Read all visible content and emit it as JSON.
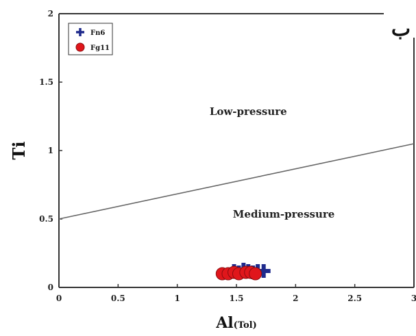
{
  "chart_data": {
    "type": "scatter",
    "xlabel_main": "Al",
    "xlabel_sub": "(Tol)",
    "ylabel": "Ti",
    "xlim": [
      0,
      3
    ],
    "ylim": [
      0,
      2
    ],
    "x_ticks": [
      "0",
      "0.5",
      "1",
      "1.5",
      "2",
      "2.5",
      "3"
    ],
    "y_ticks": [
      "0",
      "0.5",
      "1",
      "1.5",
      "2"
    ],
    "grid": false,
    "legend_position": "top-left",
    "corner_label": "ب",
    "regions": [
      {
        "label": "Low-pressure",
        "x": 1.6,
        "y": 1.26
      },
      {
        "label": "Medium-pressure",
        "x": 1.9,
        "y": 0.51
      }
    ],
    "boundary_line": {
      "x": [
        0,
        3
      ],
      "y": [
        0.5,
        1.05
      ]
    },
    "series": [
      {
        "name": "Fn6",
        "color": "#1f2a8c",
        "marker": "plus",
        "points": [
          {
            "x": 1.48,
            "y": 0.12
          },
          {
            "x": 1.52,
            "y": 0.11
          },
          {
            "x": 1.56,
            "y": 0.13
          },
          {
            "x": 1.6,
            "y": 0.12
          },
          {
            "x": 1.64,
            "y": 0.11
          },
          {
            "x": 1.68,
            "y": 0.12
          },
          {
            "x": 1.73,
            "y": 0.12
          }
        ]
      },
      {
        "name": "Fg11",
        "color": "#e0161b",
        "marker": "circle",
        "points": [
          {
            "x": 1.38,
            "y": 0.1
          },
          {
            "x": 1.43,
            "y": 0.1
          },
          {
            "x": 1.48,
            "y": 0.11
          },
          {
            "x": 1.52,
            "y": 0.1
          },
          {
            "x": 1.58,
            "y": 0.11
          },
          {
            "x": 1.62,
            "y": 0.11
          },
          {
            "x": 1.66,
            "y": 0.1
          }
        ]
      }
    ]
  }
}
